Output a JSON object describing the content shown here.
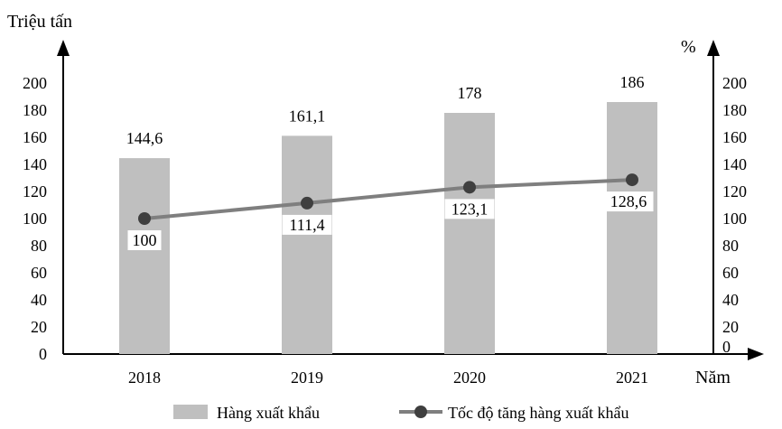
{
  "chart_data": {
    "type": "bar+line",
    "title": "",
    "categories": [
      "2018",
      "2019",
      "2020",
      "2021"
    ],
    "xlabel": "Năm",
    "y_left_label": "Triệu tấn",
    "y_right_label": "%",
    "y_left_lim": [
      0,
      200
    ],
    "y_right_lim": [
      0,
      200
    ],
    "y_left_ticks": [
      "0",
      "20",
      "40",
      "60",
      "80",
      "100",
      "120",
      "140",
      "160",
      "180",
      "200"
    ],
    "y_right_ticks": [
      "0",
      "20",
      "40",
      "60",
      "80",
      "100",
      "120",
      "140",
      "160",
      "180",
      "200"
    ],
    "series": [
      {
        "name": "Hàng xuất khẩu",
        "type": "bar",
        "axis": "left",
        "color": "#bfbfbf",
        "values": [
          144.6,
          161.1,
          178,
          186
        ],
        "labels": [
          "144,6",
          "161,1",
          "178",
          "186"
        ]
      },
      {
        "name": "Tốc độ tăng hàng xuất khẩu",
        "type": "line",
        "axis": "right",
        "color": "#7f7f7f",
        "marker_color": "#3f3f3f",
        "values": [
          100,
          111.4,
          123.1,
          128.6
        ],
        "labels": [
          "100",
          "111,4",
          "123,1",
          "128,6"
        ]
      }
    ],
    "grid": false,
    "legend_position": "bottom"
  }
}
